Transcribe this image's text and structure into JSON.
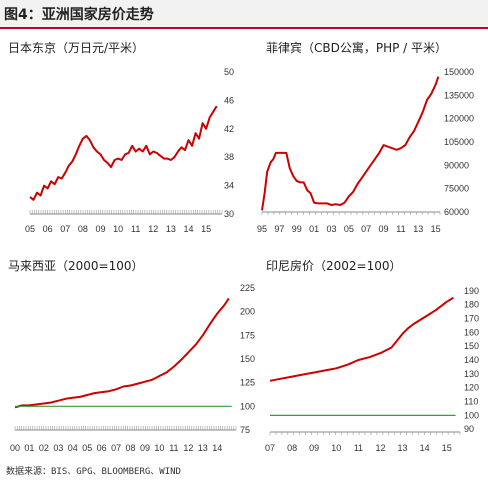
{
  "figure_title": "图4：亚洲国家房价走势",
  "source_note": "数据来源：BIS、GPG、BLOOMBERG、WIND",
  "chart_data": [
    {
      "type": "line",
      "title": "日本东京（万日元/平米）",
      "x_tick_labels": [
        "05",
        "06",
        "07",
        "08",
        "09",
        "10",
        "11",
        "12",
        "13",
        "14",
        "15"
      ],
      "y_tick_labels": [
        "30",
        "34",
        "38",
        "42",
        "46",
        "50"
      ],
      "xlim": [
        2005,
        2015.9
      ],
      "ylim": [
        30,
        50
      ],
      "series": [
        {
          "color": "#cc0000",
          "x": [
            2005.0,
            2005.2,
            2005.4,
            2005.6,
            2005.8,
            2006.0,
            2006.2,
            2006.4,
            2006.6,
            2006.8,
            2007.0,
            2007.2,
            2007.4,
            2007.6,
            2007.8,
            2008.0,
            2008.2,
            2008.4,
            2008.6,
            2008.8,
            2009.0,
            2009.2,
            2009.4,
            2009.6,
            2009.8,
            2010.0,
            2010.2,
            2010.4,
            2010.6,
            2010.8,
            2011.0,
            2011.2,
            2011.4,
            2011.6,
            2011.8,
            2012.0,
            2012.2,
            2012.4,
            2012.6,
            2012.8,
            2013.0,
            2013.2,
            2013.4,
            2013.6,
            2013.8,
            2014.0,
            2014.2,
            2014.4,
            2014.6,
            2014.8,
            2015.0,
            2015.2,
            2015.4,
            2015.6
          ],
          "values": [
            32.4,
            32.0,
            33.0,
            32.6,
            34.0,
            33.6,
            34.6,
            34.2,
            35.2,
            35.0,
            35.8,
            36.8,
            37.4,
            38.4,
            39.6,
            40.6,
            41.0,
            40.4,
            39.4,
            38.8,
            38.4,
            37.6,
            37.2,
            36.6,
            37.6,
            37.8,
            37.6,
            38.4,
            38.6,
            39.6,
            38.8,
            39.2,
            38.8,
            39.6,
            38.4,
            38.8,
            38.6,
            38.2,
            37.8,
            37.8,
            37.6,
            38.0,
            38.8,
            39.4,
            39.0,
            40.4,
            39.6,
            41.4,
            40.6,
            42.8,
            42.0,
            43.6,
            44.4,
            45.2
          ]
        }
      ]
    },
    {
      "type": "line",
      "title": "菲律宾（CBD公寓，PHP / 平米）",
      "x_tick_labels": [
        "95",
        "97",
        "99",
        "01",
        "03",
        "05",
        "07",
        "09",
        "11",
        "13",
        "15"
      ],
      "y_tick_labels": [
        "60000",
        "75000",
        "90000",
        "105000",
        "120000",
        "135000",
        "150000"
      ],
      "xlim": [
        1995,
        2015.5
      ],
      "ylim": [
        60000,
        150000
      ],
      "series": [
        {
          "color": "#cc0000",
          "x": [
            1995.0,
            1995.3,
            1995.6,
            1996.0,
            1996.3,
            1996.6,
            1997.0,
            1997.4,
            1997.8,
            1998.2,
            1998.6,
            1999.0,
            1999.4,
            1999.8,
            2000.2,
            2000.6,
            2001.0,
            2001.5,
            2002.0,
            2002.5,
            2003.0,
            2003.5,
            2004.0,
            2004.5,
            2005.0,
            2005.5,
            2006.0,
            2006.5,
            2007.0,
            2007.5,
            2008.0,
            2008.5,
            2009.0,
            2009.5,
            2010.0,
            2010.5,
            2011.0,
            2011.5,
            2012.0,
            2012.5,
            2013.0,
            2013.5,
            2014.0,
            2014.5,
            2015.0,
            2015.3
          ],
          "values": [
            61000,
            72000,
            86000,
            92000,
            94000,
            98000,
            98000,
            98000,
            98000,
            88000,
            83000,
            80000,
            79000,
            79000,
            74000,
            72000,
            66000,
            65500,
            65500,
            65500,
            64500,
            65000,
            64500,
            66000,
            70000,
            73000,
            78000,
            82000,
            86000,
            90000,
            94000,
            98000,
            103000,
            102000,
            101000,
            100000,
            101000,
            103000,
            108000,
            112000,
            118000,
            124000,
            132000,
            136000,
            142000,
            147000
          ]
        }
      ]
    },
    {
      "type": "line",
      "title": "马来西亚（2000=100）",
      "x_tick_labels": [
        "00",
        "01",
        "02",
        "03",
        "04",
        "05",
        "06",
        "07",
        "08",
        "09",
        "10",
        "11",
        "12",
        "13",
        "14"
      ],
      "y_tick_labels": [
        "75",
        "100",
        "125",
        "150",
        "175",
        "200",
        "225"
      ],
      "xlim": [
        2000,
        2015.3
      ],
      "ylim": [
        75,
        225
      ],
      "series": [
        {
          "color": "#cc0000",
          "x": [
            2000.0,
            2000.5,
            2001.0,
            2001.5,
            2002.0,
            2002.5,
            2003.0,
            2003.5,
            2004.0,
            2004.5,
            2005.0,
            2005.5,
            2006.0,
            2006.5,
            2007.0,
            2007.5,
            2008.0,
            2008.5,
            2009.0,
            2009.5,
            2010.0,
            2010.5,
            2011.0,
            2011.5,
            2012.0,
            2012.5,
            2013.0,
            2013.5,
            2014.0,
            2014.5,
            2014.8
          ],
          "values": [
            99,
            101,
            101,
            102,
            103,
            104,
            106,
            108,
            109,
            110,
            112,
            114,
            115,
            116,
            118,
            121,
            122,
            124,
            126,
            128,
            132,
            136,
            142,
            149,
            157,
            165,
            175,
            187,
            198,
            207,
            214
          ]
        },
        {
          "color": "#3a9a3a",
          "x": [
            2000.0,
            2015.0
          ],
          "values": [
            100,
            100
          ]
        }
      ]
    },
    {
      "type": "line",
      "title": "印尼房价（2002=100）",
      "x_tick_labels": [
        "07",
        "08",
        "09",
        "10",
        "11",
        "12",
        "13",
        "14",
        "15"
      ],
      "y_tick_labels": [
        "90",
        "100",
        "110",
        "120",
        "130",
        "140",
        "150",
        "160",
        "170",
        "180",
        "190"
      ],
      "xlim": [
        2007,
        2015.6
      ],
      "ylim": [
        88,
        192
      ],
      "series": [
        {
          "color": "#cc0000",
          "x": [
            2007.0,
            2007.5,
            2008.0,
            2008.5,
            2009.0,
            2009.5,
            2010.0,
            2010.5,
            2011.0,
            2011.5,
            2012.0,
            2012.5,
            2013.0,
            2013.25,
            2013.5,
            2014.0,
            2014.5,
            2015.0,
            2015.3
          ],
          "values": [
            125,
            126.5,
            128,
            129.5,
            131,
            132.5,
            134,
            136.5,
            140,
            142,
            145,
            149,
            159,
            163,
            166,
            171,
            176,
            182,
            185
          ]
        },
        {
          "color": "#3a9a3a",
          "x": [
            2007.0,
            2015.4
          ],
          "values": [
            100,
            100
          ]
        }
      ]
    }
  ]
}
